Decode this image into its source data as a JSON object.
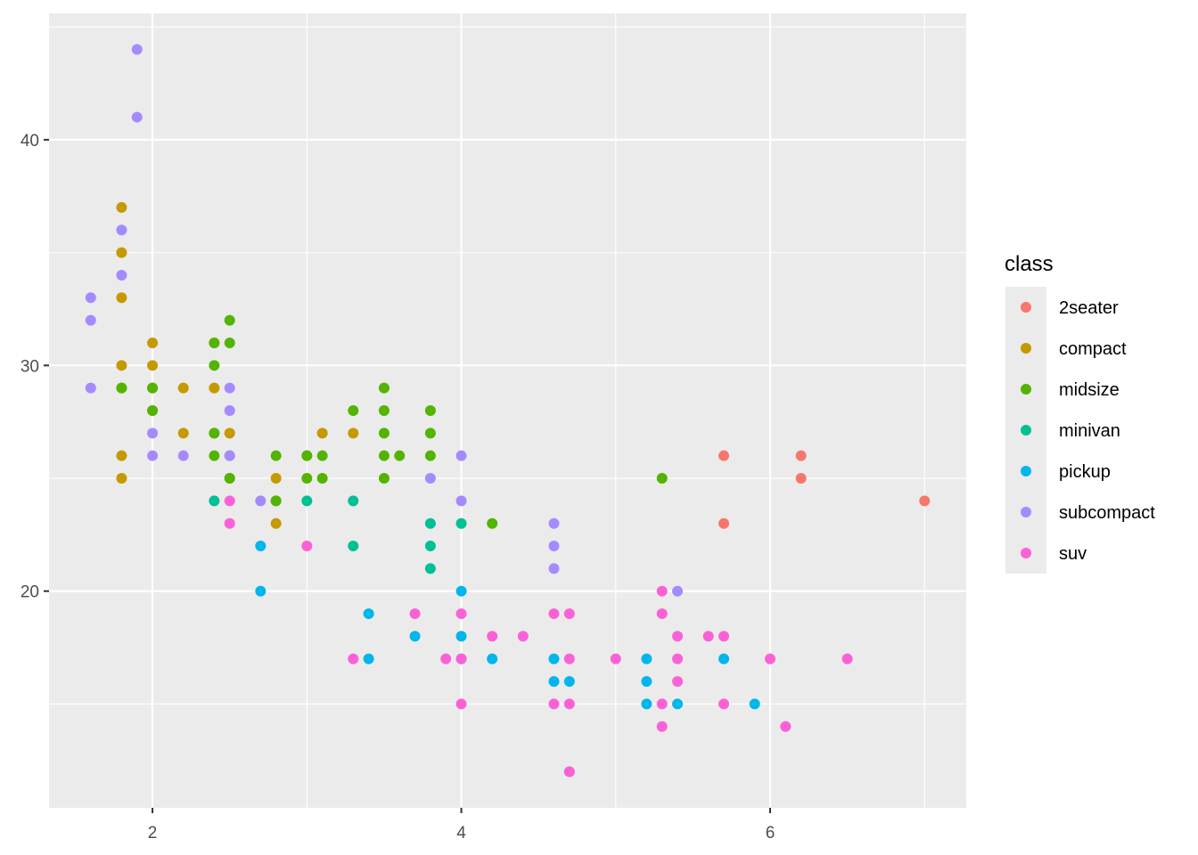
{
  "chart_data": {
    "type": "scatter",
    "title": "",
    "xlabel": "",
    "ylabel": "",
    "xlim": [
      1.33,
      7.27
    ],
    "ylim": [
      10.4,
      45.6
    ],
    "x_ticks": [
      2,
      4,
      6
    ],
    "x_tick_labels": [
      "2",
      "4",
      "6"
    ],
    "y_ticks": [
      20,
      30,
      40
    ],
    "y_tick_labels": [
      "20",
      "30",
      "40"
    ],
    "grid": true,
    "legend": {
      "title": "class",
      "placement": "right"
    },
    "series": [
      {
        "name": "2seater",
        "color": "#F8766D",
        "points": [
          [
            5.7,
            26
          ],
          [
            5.7,
            23
          ],
          [
            6.2,
            26
          ],
          [
            6.2,
            25
          ],
          [
            7.0,
            24
          ]
        ]
      },
      {
        "name": "compact",
        "color": "#C49A00",
        "points": [
          [
            1.8,
            37
          ],
          [
            1.8,
            35
          ],
          [
            1.8,
            33
          ],
          [
            1.8,
            30
          ],
          [
            1.8,
            29
          ],
          [
            1.8,
            26
          ],
          [
            1.8,
            25
          ],
          [
            2.0,
            31
          ],
          [
            2.0,
            30
          ],
          [
            2.0,
            29
          ],
          [
            2.0,
            28
          ],
          [
            2.2,
            29
          ],
          [
            2.2,
            27
          ],
          [
            2.4,
            31
          ],
          [
            2.4,
            29
          ],
          [
            2.4,
            27
          ],
          [
            2.5,
            27
          ],
          [
            2.5,
            25
          ],
          [
            2.8,
            25
          ],
          [
            2.8,
            24
          ],
          [
            2.8,
            23
          ],
          [
            3.0,
            26
          ],
          [
            3.1,
            27
          ],
          [
            3.3,
            27
          ]
        ]
      },
      {
        "name": "midsize",
        "color": "#53B400",
        "points": [
          [
            1.8,
            29
          ],
          [
            2.0,
            29
          ],
          [
            2.0,
            28
          ],
          [
            2.4,
            31
          ],
          [
            2.4,
            30
          ],
          [
            2.4,
            27
          ],
          [
            2.4,
            26
          ],
          [
            2.5,
            32
          ],
          [
            2.5,
            31
          ],
          [
            2.5,
            26
          ],
          [
            2.5,
            25
          ],
          [
            2.8,
            26
          ],
          [
            2.8,
            24
          ],
          [
            3.0,
            26
          ],
          [
            3.0,
            25
          ],
          [
            3.1,
            26
          ],
          [
            3.1,
            25
          ],
          [
            3.3,
            28
          ],
          [
            3.5,
            29
          ],
          [
            3.5,
            28
          ],
          [
            3.5,
            27
          ],
          [
            3.5,
            26
          ],
          [
            3.5,
            25
          ],
          [
            3.6,
            26
          ],
          [
            3.8,
            28
          ],
          [
            3.8,
            27
          ],
          [
            3.8,
            26
          ],
          [
            4.2,
            23
          ],
          [
            5.3,
            25
          ]
        ]
      },
      {
        "name": "minivan",
        "color": "#00C094",
        "points": [
          [
            2.4,
            24
          ],
          [
            3.0,
            24
          ],
          [
            3.3,
            24
          ],
          [
            3.3,
            22
          ],
          [
            3.8,
            23
          ],
          [
            3.8,
            22
          ],
          [
            3.8,
            21
          ],
          [
            4.0,
            23
          ]
        ]
      },
      {
        "name": "pickup",
        "color": "#00B6EB",
        "points": [
          [
            2.7,
            22
          ],
          [
            2.7,
            20
          ],
          [
            3.4,
            19
          ],
          [
            3.4,
            17
          ],
          [
            3.7,
            18
          ],
          [
            4.0,
            20
          ],
          [
            4.0,
            18
          ],
          [
            4.0,
            17
          ],
          [
            4.2,
            17
          ],
          [
            4.6,
            17
          ],
          [
            4.6,
            16
          ],
          [
            4.7,
            16
          ],
          [
            5.2,
            17
          ],
          [
            5.2,
            16
          ],
          [
            5.2,
            15
          ],
          [
            5.4,
            15
          ],
          [
            5.7,
            17
          ],
          [
            5.9,
            15
          ],
          [
            4.7,
            12
          ]
        ]
      },
      {
        "name": "subcompact",
        "color": "#A58AFF",
        "points": [
          [
            1.6,
            33
          ],
          [
            1.6,
            32
          ],
          [
            1.6,
            29
          ],
          [
            1.8,
            36
          ],
          [
            1.8,
            34
          ],
          [
            1.9,
            44
          ],
          [
            1.9,
            41
          ],
          [
            2.0,
            27
          ],
          [
            2.0,
            26
          ],
          [
            2.2,
            26
          ],
          [
            2.5,
            29
          ],
          [
            2.5,
            28
          ],
          [
            2.5,
            26
          ],
          [
            2.7,
            24
          ],
          [
            3.8,
            25
          ],
          [
            4.0,
            26
          ],
          [
            4.0,
            24
          ],
          [
            4.6,
            23
          ],
          [
            4.6,
            22
          ],
          [
            4.6,
            21
          ],
          [
            5.4,
            20
          ]
        ]
      },
      {
        "name": "suv",
        "color": "#FB61D7",
        "points": [
          [
            2.5,
            24
          ],
          [
            2.5,
            23
          ],
          [
            3.0,
            22
          ],
          [
            3.3,
            17
          ],
          [
            3.7,
            19
          ],
          [
            3.9,
            17
          ],
          [
            4.0,
            19
          ],
          [
            4.0,
            17
          ],
          [
            4.0,
            15
          ],
          [
            4.2,
            18
          ],
          [
            4.4,
            18
          ],
          [
            4.6,
            19
          ],
          [
            4.6,
            15
          ],
          [
            4.7,
            19
          ],
          [
            4.7,
            17
          ],
          [
            4.7,
            15
          ],
          [
            4.7,
            12
          ],
          [
            5.0,
            17
          ],
          [
            5.3,
            20
          ],
          [
            5.3,
            19
          ],
          [
            5.3,
            15
          ],
          [
            5.3,
            14
          ],
          [
            5.4,
            18
          ],
          [
            5.4,
            17
          ],
          [
            5.4,
            16
          ],
          [
            5.6,
            18
          ],
          [
            5.7,
            18
          ],
          [
            5.7,
            15
          ],
          [
            6.0,
            17
          ],
          [
            6.1,
            14
          ],
          [
            6.5,
            17
          ]
        ]
      }
    ]
  }
}
